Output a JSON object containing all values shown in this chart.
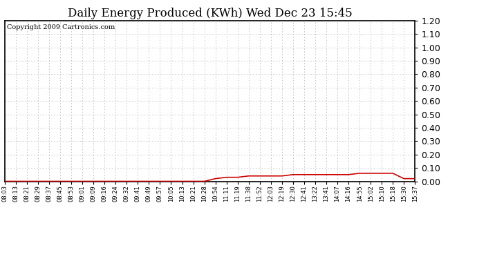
{
  "title": "Daily Energy Produced (KWh) Wed Dec 23 15:45",
  "copyright": "Copyright 2009 Cartronics.com",
  "ylim": [
    0.0,
    1.2
  ],
  "yticks": [
    0.0,
    0.1,
    0.2,
    0.3,
    0.4,
    0.5,
    0.6,
    0.7,
    0.8,
    0.9,
    1.0,
    1.1,
    1.2
  ],
  "background_color": "#ffffff",
  "line_color": "#cc0000",
  "grid_color": "#bbbbbb",
  "x_labels": [
    "08:03",
    "08:13",
    "08:21",
    "08:29",
    "08:37",
    "08:45",
    "08:53",
    "09:01",
    "09:09",
    "09:16",
    "09:24",
    "09:32",
    "09:41",
    "09:49",
    "09:57",
    "10:05",
    "10:13",
    "10:21",
    "10:28",
    "10:54",
    "11:11",
    "11:19",
    "11:38",
    "11:52",
    "12:03",
    "12:19",
    "12:30",
    "12:41",
    "13:22",
    "13:41",
    "14:07",
    "14:16",
    "14:55",
    "15:02",
    "15:10",
    "15:18",
    "15:30",
    "15:37"
  ],
  "y_values": [
    0.0,
    0.0,
    0.0,
    0.0,
    0.0,
    0.0,
    0.0,
    0.0,
    0.0,
    0.0,
    0.0,
    0.0,
    0.0,
    0.0,
    0.0,
    0.0,
    0.0,
    0.0,
    0.0,
    0.02,
    0.03,
    0.03,
    0.04,
    0.04,
    0.04,
    0.04,
    0.05,
    0.05,
    0.05,
    0.05,
    0.05,
    0.05,
    0.06,
    0.06,
    0.06,
    0.06,
    0.02,
    0.02
  ],
  "title_fontsize": 12,
  "copyright_fontsize": 7,
  "ytick_fontsize": 9,
  "xtick_fontsize": 6
}
